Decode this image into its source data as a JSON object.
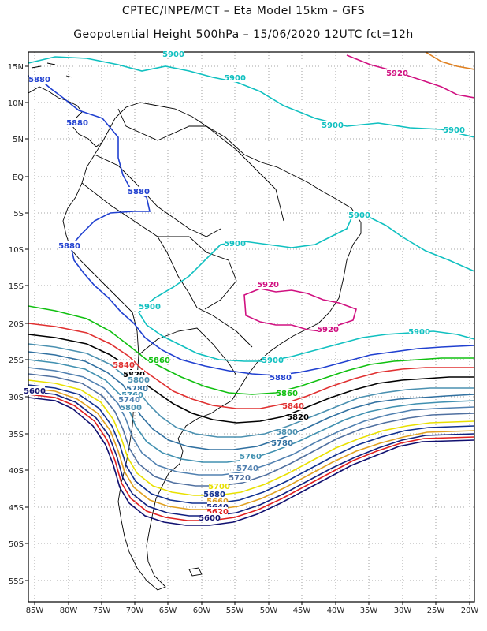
{
  "title_line1": "CPTEC/INPE/MCT –  Eta Model 15km – GFS",
  "title_line2": "Geopotential Height 500hPa – 15/06/2020 12UTC fct=12h",
  "lat_labels": [
    "15N",
    "10N",
    "5N",
    "EQ",
    "5S",
    "10S",
    "15S",
    "20S",
    "25S",
    "30S",
    "35S",
    "40S",
    "45S",
    "50S",
    "55S"
  ],
  "lon_labels": [
    "85W",
    "80W",
    "75W",
    "70W",
    "65W",
    "60W",
    "55W",
    "50W",
    "45W",
    "40W",
    "35W",
    "30W",
    "25W",
    "20W"
  ],
  "colors": {
    "5600": "#101070",
    "5620": "#e02020",
    "5640": "#102080",
    "5660": "#e0a020",
    "5680": "#103090",
    "5700": "#e8e000",
    "5720": "#5070a0",
    "5740": "#5080b0",
    "5760": "#4090b0",
    "5780": "#3070a0",
    "5800": "#4a90b0",
    "5820": "#000000",
    "5840": "#e03030",
    "5860": "#10c010",
    "5880": "#2040d0",
    "5900": "#10c0c0",
    "5920": "#d01080",
    "5940": "#e08020"
  },
  "contour_labels": [
    {
      "text": "5900",
      "color_key": "5900"
    },
    {
      "text": "5900",
      "color_key": "5900"
    },
    {
      "text": "5900",
      "color_key": "5900"
    },
    {
      "text": "5900",
      "color_key": "5900"
    },
    {
      "text": "5900",
      "color_key": "5900"
    },
    {
      "text": "5900",
      "color_key": "5900"
    },
    {
      "text": "5900",
      "color_key": "5900"
    },
    {
      "text": "5900",
      "color_key": "5900"
    },
    {
      "text": "5900",
      "color_key": "5900"
    },
    {
      "text": "5920",
      "color_key": "5920"
    },
    {
      "text": "5920",
      "color_key": "5920"
    },
    {
      "text": "5920",
      "color_key": "5920"
    },
    {
      "text": "5880",
      "color_key": "5880"
    },
    {
      "text": "5880",
      "color_key": "5880"
    },
    {
      "text": "5880",
      "color_key": "5880"
    },
    {
      "text": "5880",
      "color_key": "5880"
    },
    {
      "text": "5880",
      "color_key": "5880"
    },
    {
      "text": "5860",
      "color_key": "5860"
    },
    {
      "text": "5860",
      "color_key": "5860"
    },
    {
      "text": "5840",
      "color_key": "5840"
    },
    {
      "text": "5840",
      "color_key": "5840"
    },
    {
      "text": "5820",
      "color_key": "5820"
    },
    {
      "text": "5820",
      "color_key": "5820"
    },
    {
      "text": "5800",
      "color_key": "5800"
    },
    {
      "text": "5800",
      "color_key": "5800"
    },
    {
      "text": "5780",
      "color_key": "5780"
    },
    {
      "text": "5780",
      "color_key": "5780"
    },
    {
      "text": "5760",
      "color_key": "5760"
    },
    {
      "text": "5760",
      "color_key": "5760"
    },
    {
      "text": "5740",
      "color_key": "5740"
    },
    {
      "text": "5740",
      "color_key": "5740"
    },
    {
      "text": "5720",
      "color_key": "5720"
    },
    {
      "text": "5700",
      "color_key": "5700"
    },
    {
      "text": "5680",
      "color_key": "5680"
    },
    {
      "text": "5660",
      "color_key": "5660"
    },
    {
      "text": "5640",
      "color_key": "5640"
    },
    {
      "text": "5620",
      "color_key": "5620"
    },
    {
      "text": "5600",
      "color_key": "5600"
    },
    {
      "text": "5600",
      "color_key": "5600"
    },
    {
      "text": "5800",
      "color_key": "5800"
    }
  ]
}
